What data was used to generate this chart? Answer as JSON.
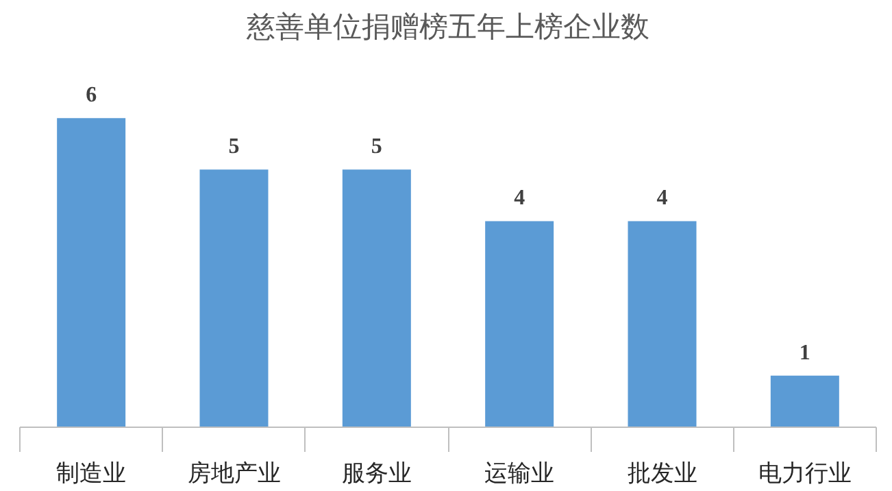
{
  "chart_data": {
    "type": "bar",
    "title": "慈善单位捐赠榜五年上榜企业数",
    "categories": [
      "制造业",
      "房地产业",
      "服务业",
      "运输业",
      "批发业",
      "电力行业"
    ],
    "values": [
      6,
      5,
      5,
      4,
      4,
      1
    ],
    "color": "#5b9bd5",
    "data_labels": true
  }
}
